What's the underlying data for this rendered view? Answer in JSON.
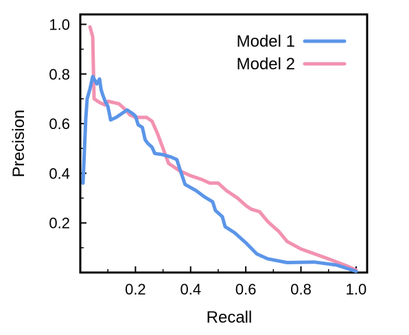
{
  "chart_data": {
    "type": "line",
    "title": "",
    "xlabel": "Recall",
    "ylabel": "Precision",
    "xlim": [
      0.0,
      1.04
    ],
    "ylim": [
      0.0,
      1.04
    ],
    "xticks": [
      0.2,
      0.4,
      0.6,
      0.8,
      1.0
    ],
    "xtick_labels": [
      "0.2",
      "0.4",
      "0.6",
      "0.8",
      "1.0"
    ],
    "yticks": [
      0.2,
      0.4,
      0.6,
      0.8,
      1.0
    ],
    "ytick_labels": [
      "0.2",
      "0.4",
      "0.6",
      "0.8",
      "1.0"
    ],
    "minor_ticks": [
      0.1,
      0.3,
      0.5,
      0.7,
      0.9
    ],
    "grid": false,
    "legend": "top-right",
    "series": [
      {
        "name": "Model 1",
        "color": "#5b95e8",
        "points": [
          [
            0.01,
            0.36
          ],
          [
            0.02,
            0.62
          ],
          [
            0.025,
            0.7
          ],
          [
            0.035,
            0.74
          ],
          [
            0.045,
            0.79
          ],
          [
            0.055,
            0.77
          ],
          [
            0.06,
            0.76
          ],
          [
            0.07,
            0.78
          ],
          [
            0.075,
            0.74
          ],
          [
            0.08,
            0.72
          ],
          [
            0.09,
            0.69
          ],
          [
            0.1,
            0.67
          ],
          [
            0.11,
            0.615
          ],
          [
            0.13,
            0.625
          ],
          [
            0.15,
            0.64
          ],
          [
            0.17,
            0.655
          ],
          [
            0.19,
            0.64
          ],
          [
            0.2,
            0.63
          ],
          [
            0.21,
            0.595
          ],
          [
            0.225,
            0.585
          ],
          [
            0.235,
            0.535
          ],
          [
            0.245,
            0.52
          ],
          [
            0.26,
            0.505
          ],
          [
            0.27,
            0.48
          ],
          [
            0.3,
            0.475
          ],
          [
            0.33,
            0.465
          ],
          [
            0.35,
            0.455
          ],
          [
            0.36,
            0.42
          ],
          [
            0.38,
            0.355
          ],
          [
            0.42,
            0.33
          ],
          [
            0.45,
            0.305
          ],
          [
            0.48,
            0.285
          ],
          [
            0.49,
            0.25
          ],
          [
            0.515,
            0.225
          ],
          [
            0.525,
            0.185
          ],
          [
            0.56,
            0.16
          ],
          [
            0.6,
            0.12
          ],
          [
            0.64,
            0.075
          ],
          [
            0.68,
            0.055
          ],
          [
            0.75,
            0.04
          ],
          [
            0.85,
            0.042
          ],
          [
            0.93,
            0.03
          ],
          [
            1.0,
            0.005
          ]
        ]
      },
      {
        "name": "Model 2",
        "color": "#f292b0",
        "points": [
          [
            0.035,
            0.99
          ],
          [
            0.045,
            0.95
          ],
          [
            0.05,
            0.7
          ],
          [
            0.07,
            0.685
          ],
          [
            0.09,
            0.675
          ],
          [
            0.1,
            0.69
          ],
          [
            0.12,
            0.685
          ],
          [
            0.14,
            0.68
          ],
          [
            0.16,
            0.66
          ],
          [
            0.18,
            0.635
          ],
          [
            0.2,
            0.625
          ],
          [
            0.22,
            0.625
          ],
          [
            0.24,
            0.625
          ],
          [
            0.26,
            0.61
          ],
          [
            0.28,
            0.56
          ],
          [
            0.3,
            0.5
          ],
          [
            0.32,
            0.44
          ],
          [
            0.36,
            0.41
          ],
          [
            0.4,
            0.39
          ],
          [
            0.44,
            0.375
          ],
          [
            0.47,
            0.36
          ],
          [
            0.5,
            0.36
          ],
          [
            0.53,
            0.33
          ],
          [
            0.57,
            0.3
          ],
          [
            0.6,
            0.27
          ],
          [
            0.62,
            0.255
          ],
          [
            0.65,
            0.245
          ],
          [
            0.68,
            0.205
          ],
          [
            0.7,
            0.185
          ],
          [
            0.72,
            0.165
          ],
          [
            0.75,
            0.125
          ],
          [
            0.8,
            0.095
          ],
          [
            0.9,
            0.055
          ],
          [
            0.97,
            0.025
          ],
          [
            1.0,
            0.01
          ]
        ]
      }
    ]
  }
}
